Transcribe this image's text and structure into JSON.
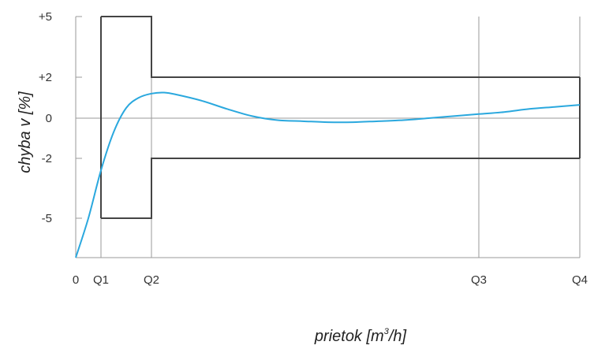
{
  "chart_data": {
    "type": "line",
    "title": "",
    "xlabel": {
      "pre": "prietok [m",
      "sup": "3",
      "post": "/h]"
    },
    "ylabel": "chyba v [%]",
    "x_ticks": [
      {
        "label": "0",
        "x": 0
      },
      {
        "label": "Q1",
        "x": 1
      },
      {
        "label": "Q2",
        "x": 3
      },
      {
        "label": "Q3",
        "x": 16
      },
      {
        "label": "Q4",
        "x": 20
      }
    ],
    "y_ticks": [
      {
        "label": "+5",
        "y": 5
      },
      {
        "label": "+2",
        "y": 2
      },
      {
        "label": "0",
        "y": 0
      },
      {
        "label": "-2",
        "y": -2
      },
      {
        "label": "-5",
        "y": -5
      }
    ],
    "xlim": [
      0,
      20
    ],
    "ylim": [
      -7,
      5
    ],
    "error_limit_envelope": {
      "upper": [
        [
          1,
          5
        ],
        [
          3,
          5
        ],
        [
          3,
          2
        ],
        [
          20,
          2
        ]
      ],
      "lower": [
        [
          1,
          -5
        ],
        [
          3,
          -5
        ],
        [
          3,
          -2
        ],
        [
          20,
          -2
        ]
      ]
    },
    "series": [
      {
        "color": "#2aa8de",
        "points": [
          [
            0,
            -7
          ],
          [
            0.5,
            -5
          ],
          [
            1,
            -2.6
          ],
          [
            1.5,
            -0.7
          ],
          [
            2,
            0.5
          ],
          [
            2.5,
            1.0
          ],
          [
            3,
            1.2
          ],
          [
            3.5,
            1.25
          ],
          [
            4,
            1.15
          ],
          [
            5,
            0.85
          ],
          [
            6,
            0.45
          ],
          [
            7,
            0.1
          ],
          [
            8,
            -0.1
          ],
          [
            9,
            -0.15
          ],
          [
            10,
            -0.2
          ],
          [
            11,
            -0.2
          ],
          [
            12,
            -0.15
          ],
          [
            13,
            -0.1
          ],
          [
            14,
            0
          ],
          [
            15,
            0.1
          ],
          [
            16,
            0.2
          ],
          [
            17,
            0.3
          ],
          [
            18,
            0.45
          ],
          [
            19,
            0.55
          ],
          [
            20,
            0.65
          ]
        ]
      }
    ],
    "grid": "vertical lines at Q1, Q2, Q3, Q4 and horizontal line at 0",
    "colors": {
      "envelope": "#444444",
      "grid": "#9a9a9a",
      "curve": "#2aa8de"
    }
  }
}
